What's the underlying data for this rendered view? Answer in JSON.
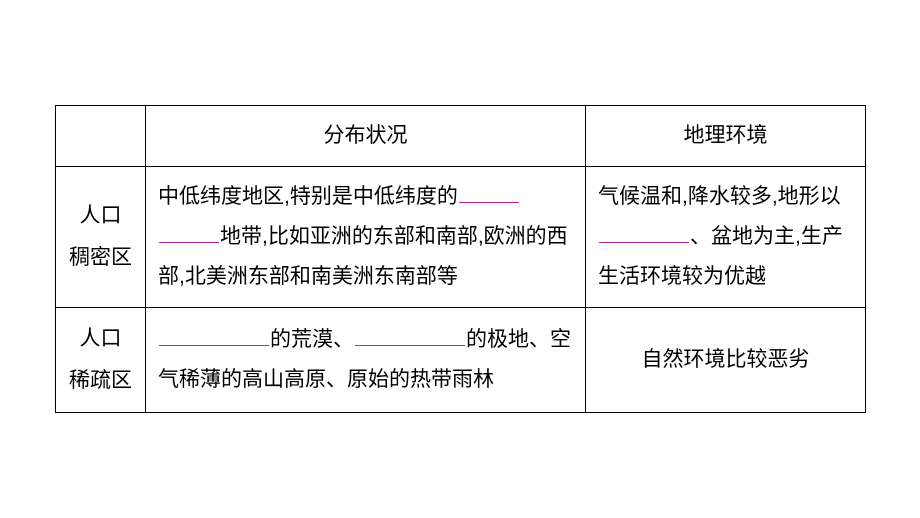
{
  "table": {
    "blank_color": "#c02090",
    "headers": {
      "col1": "分布状况",
      "col2": "地理环境"
    },
    "rows": [
      {
        "label_line1": "人口",
        "label_line2": "稠密区",
        "dist_p1": "中低纬度地区,特别是中低纬度的",
        "dist_p2": "地带,比如亚洲的东部和南部,欧洲的西部,北美洲东部和南美洲东南部等",
        "env_p1": "气候温和,降水较多,地形以",
        "env_p2": "、盆地为主,生产生活环境较为优越",
        "blank_widths": {
          "dist1": 60,
          "dist2": 60,
          "env1": 90
        }
      },
      {
        "label_line1": "人口",
        "label_line2": "稀疏区",
        "dist_p1": "的荒漠、",
        "dist_p2": "的极地、空气稀薄的高山高原、原始的热带雨林",
        "env_p1": "自然环境比较恶劣",
        "blank_widths": {
          "dist1": 110,
          "dist2": 110
        }
      }
    ]
  }
}
